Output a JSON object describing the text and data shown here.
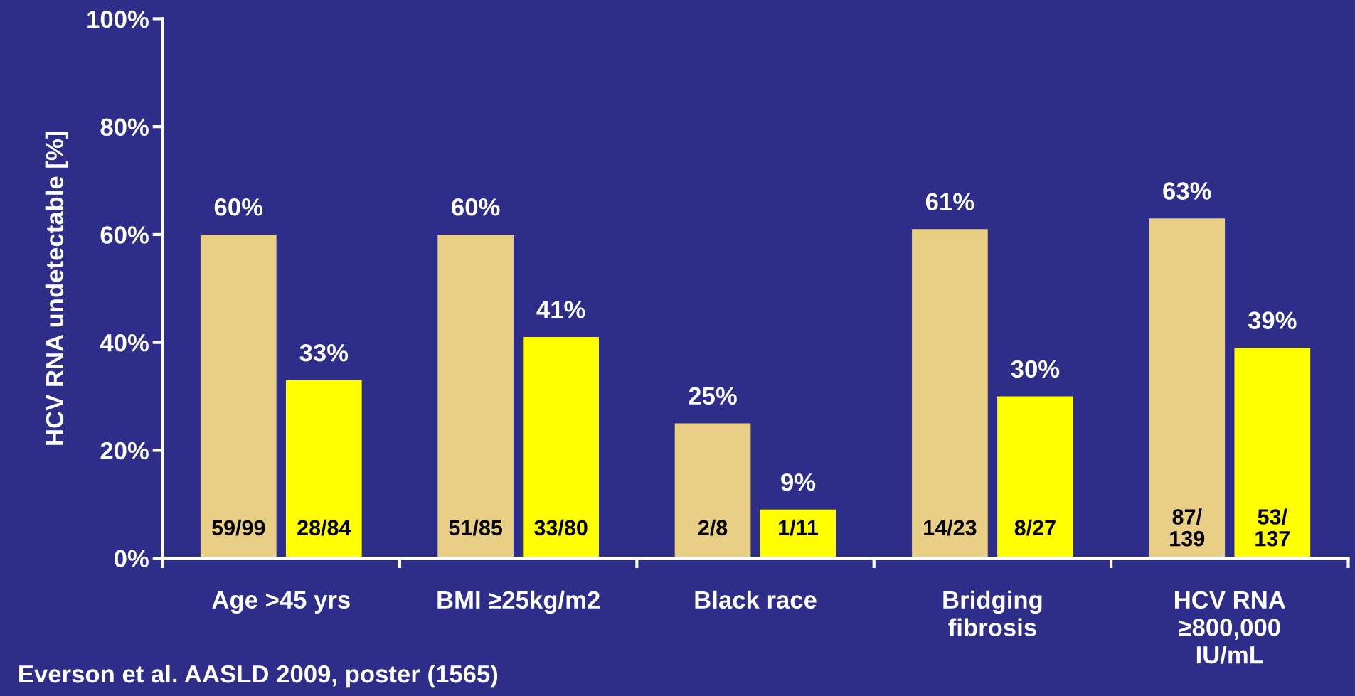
{
  "chart_data": {
    "type": "bar",
    "ylabel": "HCV RNA undetectable [%]",
    "categories": [
      "Age >45 yrs",
      "BMI ≥25kg/m2",
      "Black race",
      "Bridging\nfibrosis",
      "HCV RNA\n≥800,000\nIU/mL"
    ],
    "series": [
      {
        "color": "#e9cf86",
        "values": [
          60,
          60,
          25,
          61,
          63
        ],
        "value_labels": [
          "60%",
          "60%",
          "25%",
          "61%",
          "63%"
        ]
      },
      {
        "color": "#ffff00",
        "values": [
          33,
          41,
          9,
          30,
          39
        ],
        "value_labels": [
          "33%",
          "41%",
          "9%",
          "30%",
          "39%"
        ]
      }
    ],
    "ylim": [
      0,
      100
    ],
    "yticks": [
      {
        "value": 0,
        "label": "0%"
      },
      {
        "value": 20,
        "label": "20%"
      },
      {
        "value": 40,
        "label": "40%"
      },
      {
        "value": 60,
        "label": "60%"
      },
      {
        "value": 80,
        "label": "80%"
      },
      {
        "value": 100,
        "label": "100%"
      }
    ],
    "grid": false,
    "legend": false,
    "annotations": [
      "59/99",
      "28/84",
      "51/85",
      "33/80",
      "2/8",
      "1/11",
      "14/23",
      "8/27",
      "87/\n139",
      "53/\n137",
      "Everson et al. AASLD 2009, poster (1565)"
    ]
  }
}
